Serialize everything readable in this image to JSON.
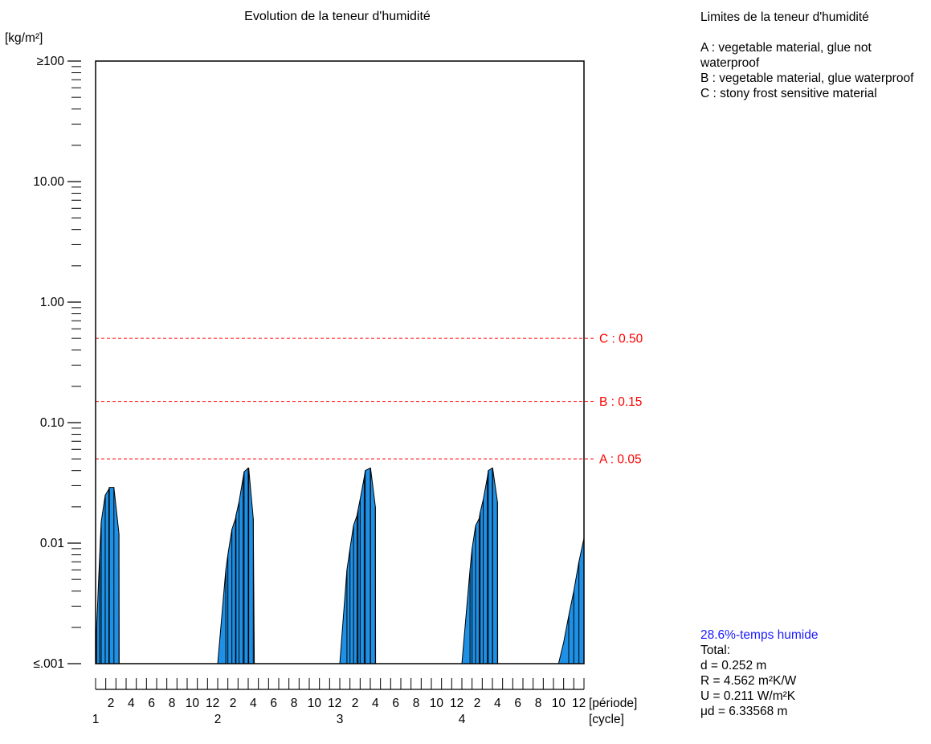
{
  "chart_data": {
    "type": "area",
    "title": "Evolution de la teneur d'humidité",
    "ylabel": "[kg/m²]",
    "y_scale": "log",
    "ylim": [
      0.001,
      100
    ],
    "y_ticks": [
      {
        "value": 100,
        "label": "≥100"
      },
      {
        "value": 10,
        "label": "10.00"
      },
      {
        "value": 1,
        "label": "1.00"
      },
      {
        "value": 0.1,
        "label": "0.10"
      },
      {
        "value": 0.01,
        "label": "0.01"
      },
      {
        "value": 0.001,
        "label": "≤.001"
      }
    ],
    "x_unit_label": "[période]",
    "x_cycle_label": "[cycle]",
    "xlim": [
      0.5,
      48.5
    ],
    "period_ticks": [
      2,
      4,
      6,
      8,
      10,
      12
    ],
    "cycles": [
      "1",
      "2",
      "3",
      "4"
    ],
    "periods_per_cycle": 12,
    "grid": false,
    "fill_color": "#1e90e6",
    "limit_color": "#ff0000",
    "limits": [
      {
        "name": "C",
        "value": 0.5,
        "label": "C : 0.50"
      },
      {
        "name": "B",
        "value": 0.15,
        "label": "B : 0.15"
      },
      {
        "name": "A",
        "value": 0.05,
        "label": "A : 0.05"
      }
    ],
    "series": [
      {
        "x": [
          0.5,
          0.6,
          0.9,
          1.05,
          1.45,
          1.8,
          1.85,
          2.3,
          2.8,
          2.82,
          12.5,
          13.3,
          13.5,
          13.9,
          14.25,
          14.3,
          14.6,
          15.0,
          15.1,
          15.5,
          15.55,
          16.0,
          16.1,
          24.5,
          25.2,
          25.5,
          25.85,
          26.2,
          26.3,
          26.5,
          26.9,
          27.0,
          27.5,
          27.52,
          28.0,
          28.02,
          36.5,
          37.3,
          37.5,
          37.85,
          38.2,
          38.3,
          38.6,
          39.0,
          39.1,
          39.5,
          39.52,
          40.0,
          40.02,
          48.5
        ],
        "values": [
          0.001,
          0.002,
          0.008,
          0.015,
          0.025,
          0.028,
          0.029,
          0.029,
          0.012,
          0.001,
          0.001,
          0.006,
          0.008,
          0.013,
          0.016,
          0.017,
          0.022,
          0.035,
          0.039,
          0.042,
          0.042,
          0.016,
          0.001,
          0.001,
          0.006,
          0.009,
          0.014,
          0.017,
          0.019,
          0.023,
          0.035,
          0.04,
          0.042,
          0.042,
          0.02,
          0.001,
          0.001,
          0.006,
          0.009,
          0.014,
          0.016,
          0.018,
          0.023,
          0.035,
          0.04,
          0.042,
          0.042,
          0.022,
          0.001,
          0.001
        ]
      },
      {
        "x": [
          46.0,
          46.5,
          47.0,
          47.5,
          48.0,
          48.5
        ],
        "values": [
          0.001,
          0.0015,
          0.0025,
          0.004,
          0.007,
          0.011
        ]
      }
    ]
  },
  "legend": {
    "title": "Limites de la teneur d'humidité",
    "items": [
      "A : vegetable material, glue not waterproof",
      "B : vegetable material, glue waterproof",
      "C : stony frost sensitive material"
    ]
  },
  "stats": {
    "wet_time": "28.6%-temps humide",
    "total_label": "Total:",
    "d": "d  = 0.252 m",
    "R": "R  = 4.562 m²K/W",
    "U": "U  = 0.211 W/m²K",
    "mud": "μd = 6.33568 m"
  }
}
